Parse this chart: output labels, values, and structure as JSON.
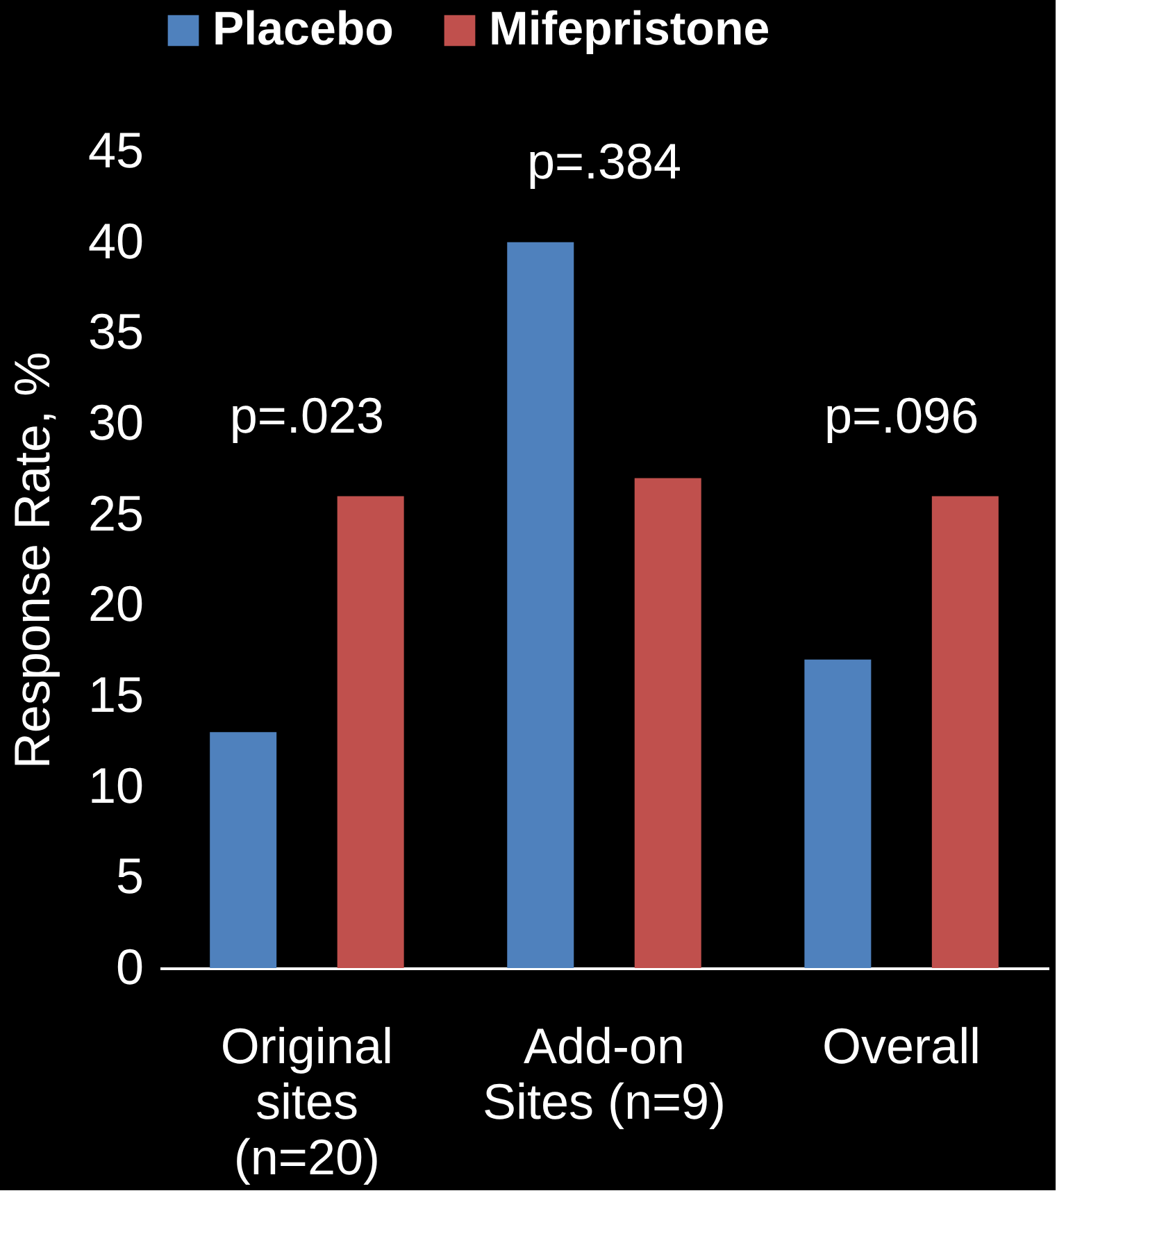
{
  "chart_data": {
    "type": "bar",
    "ylabel": "Response Rate, %",
    "categories": [
      "Original sites (n=20)",
      "Add-on Sites (n=9)",
      "Overall"
    ],
    "series": [
      {
        "name": "Placebo",
        "color": "#4f81bd",
        "values": [
          13,
          40,
          17
        ]
      },
      {
        "name": "Mifepristone",
        "color": "#c0504d",
        "values": [
          26,
          27,
          26
        ]
      }
    ],
    "ylim": [
      0,
      45
    ],
    "yticks": [
      0,
      5,
      10,
      15,
      20,
      25,
      30,
      35,
      40,
      45
    ],
    "grid": false,
    "legend": "top",
    "annotations": [
      "p=.023",
      "p=.384",
      "p=.096"
    ]
  }
}
